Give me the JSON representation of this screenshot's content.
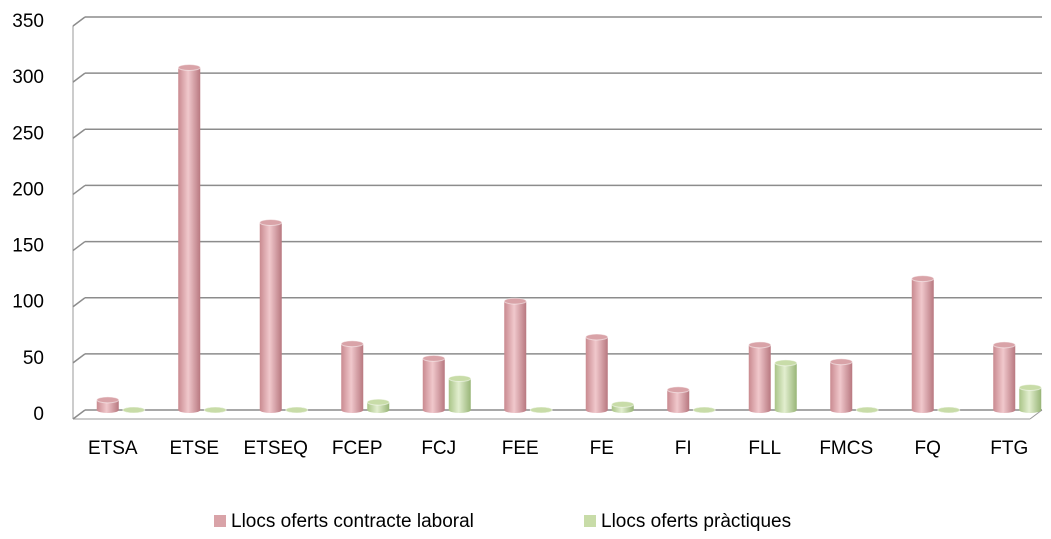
{
  "chart_data": {
    "type": "bar",
    "categories": [
      "ETSA",
      "ETSE",
      "ETSEQ",
      "FCEP",
      "FCJ",
      "FEE",
      "FE",
      "FI",
      "FLL",
      "FMCS",
      "FQ",
      "FTG"
    ],
    "series": [
      {
        "name": "Llocs oferts contracte laboral",
        "color": "#d9a3a8",
        "values": [
          9,
          305,
          167,
          59,
          46,
          97,
          65,
          18,
          58,
          43,
          117,
          58
        ]
      },
      {
        "name": "Llocs oferts pràctiques",
        "color": "#c8dca8",
        "values": [
          0,
          0,
          0,
          7,
          28,
          0,
          5,
          0,
          42,
          0,
          0,
          20
        ]
      }
    ],
    "ylim": [
      0,
      350
    ],
    "yticks": [
      0,
      50,
      100,
      150,
      200,
      250,
      300,
      350
    ],
    "grid": true,
    "legend": "bottom"
  }
}
